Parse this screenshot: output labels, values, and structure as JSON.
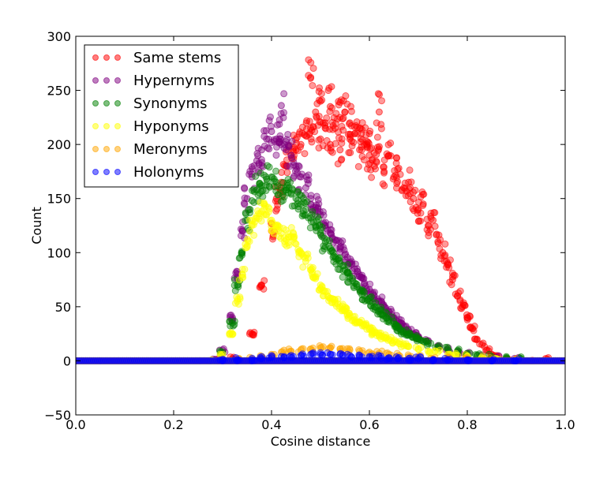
{
  "chart_data": {
    "type": "scatter",
    "title": "",
    "xlabel": "Cosine distance",
    "ylabel": "Count",
    "xlim": [
      0.0,
      1.0
    ],
    "ylim": [
      -50,
      300
    ],
    "xticks": [
      "0.0",
      "0.2",
      "0.4",
      "0.6",
      "0.8",
      "1.0"
    ],
    "yticks": [
      "-50",
      "0",
      "50",
      "100",
      "150",
      "200",
      "250",
      "300"
    ],
    "grid": false,
    "legend_position": "top-left",
    "series": [
      {
        "name": "Same stems",
        "color": "#ff0000",
        "points": [
          [
            0.29,
            0
          ],
          [
            0.32,
            2
          ],
          [
            0.36,
            25
          ],
          [
            0.38,
            70
          ],
          [
            0.4,
            120
          ],
          [
            0.41,
            150
          ],
          [
            0.42,
            165
          ],
          [
            0.43,
            180
          ],
          [
            0.44,
            190
          ],
          [
            0.45,
            195
          ],
          [
            0.46,
            200
          ],
          [
            0.47,
            208
          ],
          [
            0.48,
            215
          ],
          [
            0.48,
            262
          ],
          [
            0.49,
            230
          ],
          [
            0.5,
            205
          ],
          [
            0.5,
            240
          ],
          [
            0.51,
            220
          ],
          [
            0.52,
            200
          ],
          [
            0.52,
            235
          ],
          [
            0.53,
            215
          ],
          [
            0.54,
            225
          ],
          [
            0.54,
            195
          ],
          [
            0.55,
            230
          ],
          [
            0.56,
            205
          ],
          [
            0.56,
            220
          ],
          [
            0.57,
            210
          ],
          [
            0.58,
            195
          ],
          [
            0.58,
            215
          ],
          [
            0.59,
            200
          ],
          [
            0.6,
            190
          ],
          [
            0.6,
            210
          ],
          [
            0.61,
            180
          ],
          [
            0.62,
            198
          ],
          [
            0.62,
            230
          ],
          [
            0.63,
            175
          ],
          [
            0.64,
            190
          ],
          [
            0.65,
            170
          ],
          [
            0.66,
            178
          ],
          [
            0.67,
            160
          ],
          [
            0.68,
            165
          ],
          [
            0.69,
            150
          ],
          [
            0.7,
            140
          ],
          [
            0.71,
            145
          ],
          [
            0.72,
            125
          ],
          [
            0.73,
            130
          ],
          [
            0.74,
            110
          ],
          [
            0.75,
            100
          ],
          [
            0.76,
            90
          ],
          [
            0.77,
            75
          ],
          [
            0.78,
            60
          ],
          [
            0.79,
            50
          ],
          [
            0.8,
            40
          ],
          [
            0.81,
            30
          ],
          [
            0.82,
            20
          ],
          [
            0.83,
            15
          ],
          [
            0.84,
            10
          ],
          [
            0.85,
            6
          ],
          [
            0.86,
            3
          ],
          [
            0.88,
            2
          ],
          [
            0.9,
            1
          ],
          [
            0.93,
            0
          ],
          [
            0.96,
            2
          ]
        ]
      },
      {
        "name": "Hypernyms",
        "color": "#800080",
        "points": [
          [
            0.28,
            0
          ],
          [
            0.3,
            10
          ],
          [
            0.32,
            40
          ],
          [
            0.33,
            80
          ],
          [
            0.34,
            120
          ],
          [
            0.35,
            150
          ],
          [
            0.36,
            170
          ],
          [
            0.37,
            185
          ],
          [
            0.38,
            195
          ],
          [
            0.39,
            205
          ],
          [
            0.4,
            212
          ],
          [
            0.41,
            205
          ],
          [
            0.42,
            200
          ],
          [
            0.42,
            236
          ],
          [
            0.43,
            195
          ],
          [
            0.44,
            190
          ],
          [
            0.45,
            180
          ],
          [
            0.46,
            170
          ],
          [
            0.47,
            160
          ],
          [
            0.48,
            150
          ],
          [
            0.49,
            142
          ],
          [
            0.5,
            135
          ],
          [
            0.51,
            125
          ],
          [
            0.52,
            118
          ],
          [
            0.53,
            112
          ],
          [
            0.54,
            105
          ],
          [
            0.55,
            98
          ],
          [
            0.56,
            90
          ],
          [
            0.57,
            85
          ],
          [
            0.58,
            78
          ],
          [
            0.59,
            72
          ],
          [
            0.6,
            66
          ],
          [
            0.61,
            60
          ],
          [
            0.62,
            55
          ],
          [
            0.63,
            50
          ],
          [
            0.64,
            45
          ],
          [
            0.65,
            40
          ],
          [
            0.66,
            36
          ],
          [
            0.67,
            32
          ],
          [
            0.68,
            28
          ],
          [
            0.69,
            25
          ],
          [
            0.7,
            22
          ],
          [
            0.72,
            18
          ],
          [
            0.74,
            14
          ],
          [
            0.76,
            10
          ],
          [
            0.78,
            8
          ],
          [
            0.8,
            6
          ],
          [
            0.83,
            4
          ],
          [
            0.86,
            3
          ],
          [
            0.9,
            2
          ]
        ]
      },
      {
        "name": "Synonyms",
        "color": "#008000",
        "points": [
          [
            0.28,
            0
          ],
          [
            0.3,
            8
          ],
          [
            0.32,
            35
          ],
          [
            0.33,
            70
          ],
          [
            0.34,
            100
          ],
          [
            0.35,
            130
          ],
          [
            0.36,
            148
          ],
          [
            0.37,
            158
          ],
          [
            0.38,
            162
          ],
          [
            0.39,
            168
          ],
          [
            0.4,
            170
          ],
          [
            0.41,
            165
          ],
          [
            0.42,
            160
          ],
          [
            0.43,
            158
          ],
          [
            0.44,
            155
          ],
          [
            0.45,
            150
          ],
          [
            0.46,
            145
          ],
          [
            0.47,
            140
          ],
          [
            0.48,
            132
          ],
          [
            0.49,
            125
          ],
          [
            0.5,
            118
          ],
          [
            0.51,
            110
          ],
          [
            0.52,
            104
          ],
          [
            0.53,
            96
          ],
          [
            0.54,
            90
          ],
          [
            0.55,
            84
          ],
          [
            0.56,
            78
          ],
          [
            0.57,
            72
          ],
          [
            0.58,
            66
          ],
          [
            0.59,
            60
          ],
          [
            0.6,
            55
          ],
          [
            0.61,
            50
          ],
          [
            0.62,
            46
          ],
          [
            0.63,
            42
          ],
          [
            0.64,
            38
          ],
          [
            0.65,
            34
          ],
          [
            0.66,
            30
          ],
          [
            0.67,
            27
          ],
          [
            0.68,
            24
          ],
          [
            0.69,
            22
          ],
          [
            0.7,
            20
          ],
          [
            0.71,
            18
          ],
          [
            0.72,
            16
          ],
          [
            0.74,
            13
          ],
          [
            0.76,
            11
          ],
          [
            0.78,
            9
          ],
          [
            0.8,
            7
          ],
          [
            0.82,
            5
          ],
          [
            0.85,
            4
          ],
          [
            0.88,
            3
          ],
          [
            0.91,
            2
          ]
        ]
      },
      {
        "name": "Hyponyms",
        "color": "#ffff00",
        "points": [
          [
            0.28,
            0
          ],
          [
            0.3,
            6
          ],
          [
            0.32,
            25
          ],
          [
            0.33,
            55
          ],
          [
            0.34,
            80
          ],
          [
            0.35,
            105
          ],
          [
            0.36,
            125
          ],
          [
            0.37,
            132
          ],
          [
            0.38,
            138
          ],
          [
            0.39,
            135
          ],
          [
            0.4,
            130
          ],
          [
            0.41,
            125
          ],
          [
            0.42,
            118
          ],
          [
            0.43,
            112
          ],
          [
            0.44,
            115
          ],
          [
            0.45,
            108
          ],
          [
            0.46,
            100
          ],
          [
            0.47,
            92
          ],
          [
            0.48,
            84
          ],
          [
            0.49,
            76
          ],
          [
            0.5,
            70
          ],
          [
            0.51,
            64
          ],
          [
            0.52,
            58
          ],
          [
            0.53,
            54
          ],
          [
            0.54,
            50
          ],
          [
            0.55,
            46
          ],
          [
            0.56,
            42
          ],
          [
            0.57,
            38
          ],
          [
            0.58,
            35
          ],
          [
            0.59,
            32
          ],
          [
            0.6,
            29
          ],
          [
            0.61,
            26
          ],
          [
            0.62,
            24
          ],
          [
            0.63,
            22
          ],
          [
            0.64,
            20
          ],
          [
            0.65,
            18
          ],
          [
            0.66,
            16
          ],
          [
            0.67,
            14
          ],
          [
            0.68,
            13
          ],
          [
            0.7,
            11
          ],
          [
            0.72,
            9
          ],
          [
            0.74,
            8
          ],
          [
            0.76,
            6
          ],
          [
            0.78,
            5
          ],
          [
            0.8,
            4
          ],
          [
            0.83,
            3
          ],
          [
            0.86,
            2
          ],
          [
            0.9,
            1
          ]
        ]
      },
      {
        "name": "Meronyms",
        "color": "#ffa500",
        "points": [
          [
            0.3,
            0
          ],
          [
            0.33,
            1
          ],
          [
            0.36,
            2
          ],
          [
            0.38,
            4
          ],
          [
            0.4,
            6
          ],
          [
            0.42,
            8
          ],
          [
            0.44,
            9
          ],
          [
            0.46,
            10
          ],
          [
            0.48,
            11
          ],
          [
            0.5,
            12
          ],
          [
            0.52,
            12
          ],
          [
            0.54,
            11
          ],
          [
            0.56,
            10
          ],
          [
            0.58,
            9
          ],
          [
            0.6,
            8
          ],
          [
            0.62,
            7
          ],
          [
            0.64,
            6
          ],
          [
            0.66,
            5
          ],
          [
            0.68,
            4
          ],
          [
            0.7,
            3
          ],
          [
            0.73,
            2
          ],
          [
            0.76,
            2
          ],
          [
            0.8,
            1
          ],
          [
            0.85,
            1
          ],
          [
            0.9,
            0
          ]
        ]
      },
      {
        "name": "Holonyms",
        "color": "#0000ff",
        "points": [
          [
            0.3,
            0
          ],
          [
            0.33,
            1
          ],
          [
            0.36,
            1
          ],
          [
            0.38,
            2
          ],
          [
            0.4,
            3
          ],
          [
            0.42,
            4
          ],
          [
            0.44,
            5
          ],
          [
            0.46,
            5
          ],
          [
            0.48,
            6
          ],
          [
            0.5,
            6
          ],
          [
            0.52,
            6
          ],
          [
            0.54,
            6
          ],
          [
            0.56,
            5
          ],
          [
            0.58,
            5
          ],
          [
            0.6,
            4
          ],
          [
            0.62,
            4
          ],
          [
            0.64,
            3
          ],
          [
            0.66,
            3
          ],
          [
            0.68,
            2
          ],
          [
            0.7,
            2
          ],
          [
            0.73,
            1
          ],
          [
            0.76,
            1
          ],
          [
            0.8,
            1
          ],
          [
            0.85,
            0
          ],
          [
            0.9,
            0
          ]
        ]
      }
    ]
  }
}
